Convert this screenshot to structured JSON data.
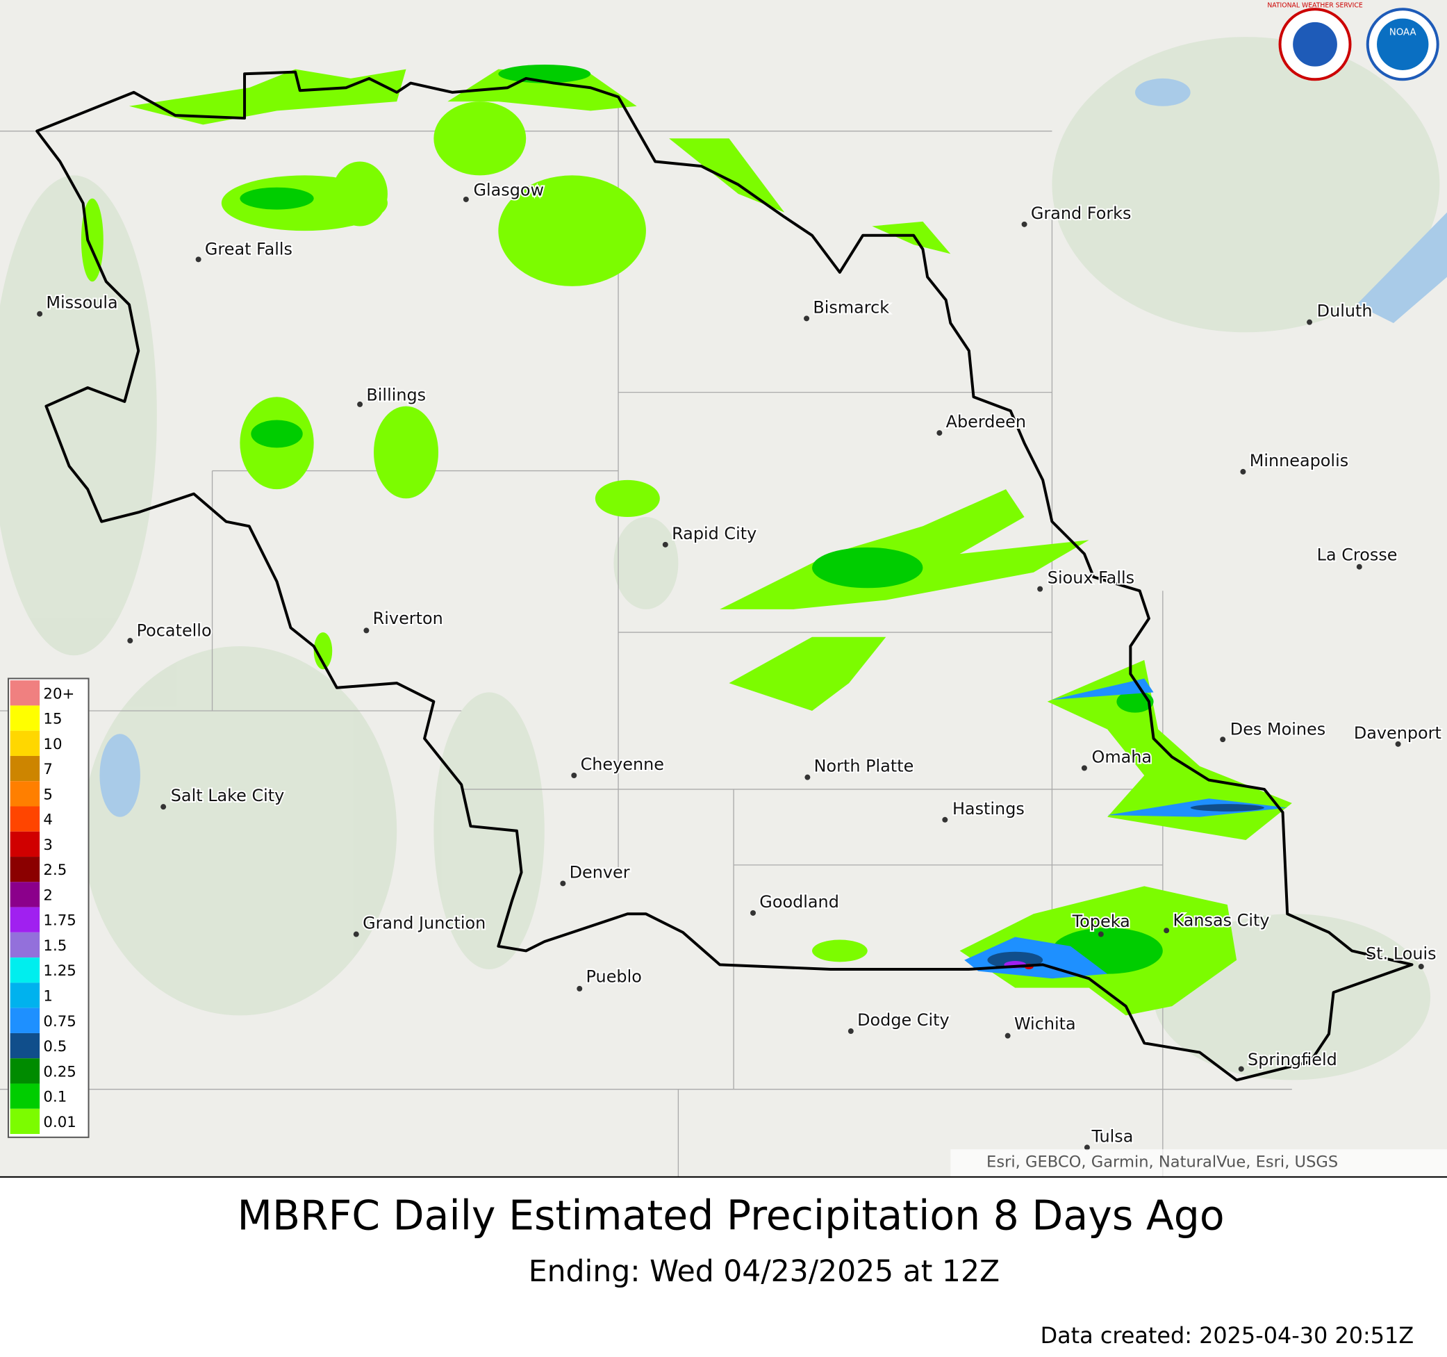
{
  "title": "MBRFC Daily Estimated Precipitation 8 Days Ago",
  "subtitle": "Ending: Wed 04/23/2025 at 12Z",
  "data_created": "Data created: 2025-04-30 20:51Z",
  "attribution": "Esri, GEBCO, Garmin, NaturalVue, Esri, USGS",
  "logos": [
    "NATIONAL WEATHER SERVICE",
    "NOAA"
  ],
  "cities": [
    "Glasgow",
    "Great Falls",
    "Missoula",
    "Grand Forks",
    "Bismarck",
    "Duluth",
    "Billings",
    "Aberdeen",
    "Minneapolis",
    "Rapid City",
    "La Crosse",
    "Sioux Falls",
    "Pocatello",
    "Riverton",
    "Des Moines",
    "Davenport",
    "Omaha",
    "Cheyenne",
    "North Platte",
    "Salt Lake City",
    "Hastings",
    "Denver",
    "Goodland",
    "Grand Junction",
    "Topeka",
    "Kansas City",
    "St. Louis",
    "Pueblo",
    "Dodge City",
    "Wichita",
    "Springfield",
    "Tulsa"
  ],
  "legend": {
    "items": [
      {
        "label": "20+",
        "color": "#f08080"
      },
      {
        "label": "15",
        "color": "#ffff00"
      },
      {
        "label": "10",
        "color": "#ffd700"
      },
      {
        "label": "7",
        "color": "#cd8500"
      },
      {
        "label": "5",
        "color": "#ff7f00"
      },
      {
        "label": "4",
        "color": "#ff4500"
      },
      {
        "label": "3",
        "color": "#d00000"
      },
      {
        "label": "2.5",
        "color": "#8b0000"
      },
      {
        "label": "2",
        "color": "#8b008b"
      },
      {
        "label": "1.75",
        "color": "#a020f0"
      },
      {
        "label": "1.5",
        "color": "#9370db"
      },
      {
        "label": "1.25",
        "color": "#00eeee"
      },
      {
        "label": "1",
        "color": "#00b2ee"
      },
      {
        "label": "0.75",
        "color": "#1e90ff"
      },
      {
        "label": "0.5",
        "color": "#104e8b"
      },
      {
        "label": "0.25",
        "color": "#008b00"
      },
      {
        "label": "0.1",
        "color": "#00cd00"
      },
      {
        "label": "0.01",
        "color": "#7cfc00"
      }
    ]
  }
}
